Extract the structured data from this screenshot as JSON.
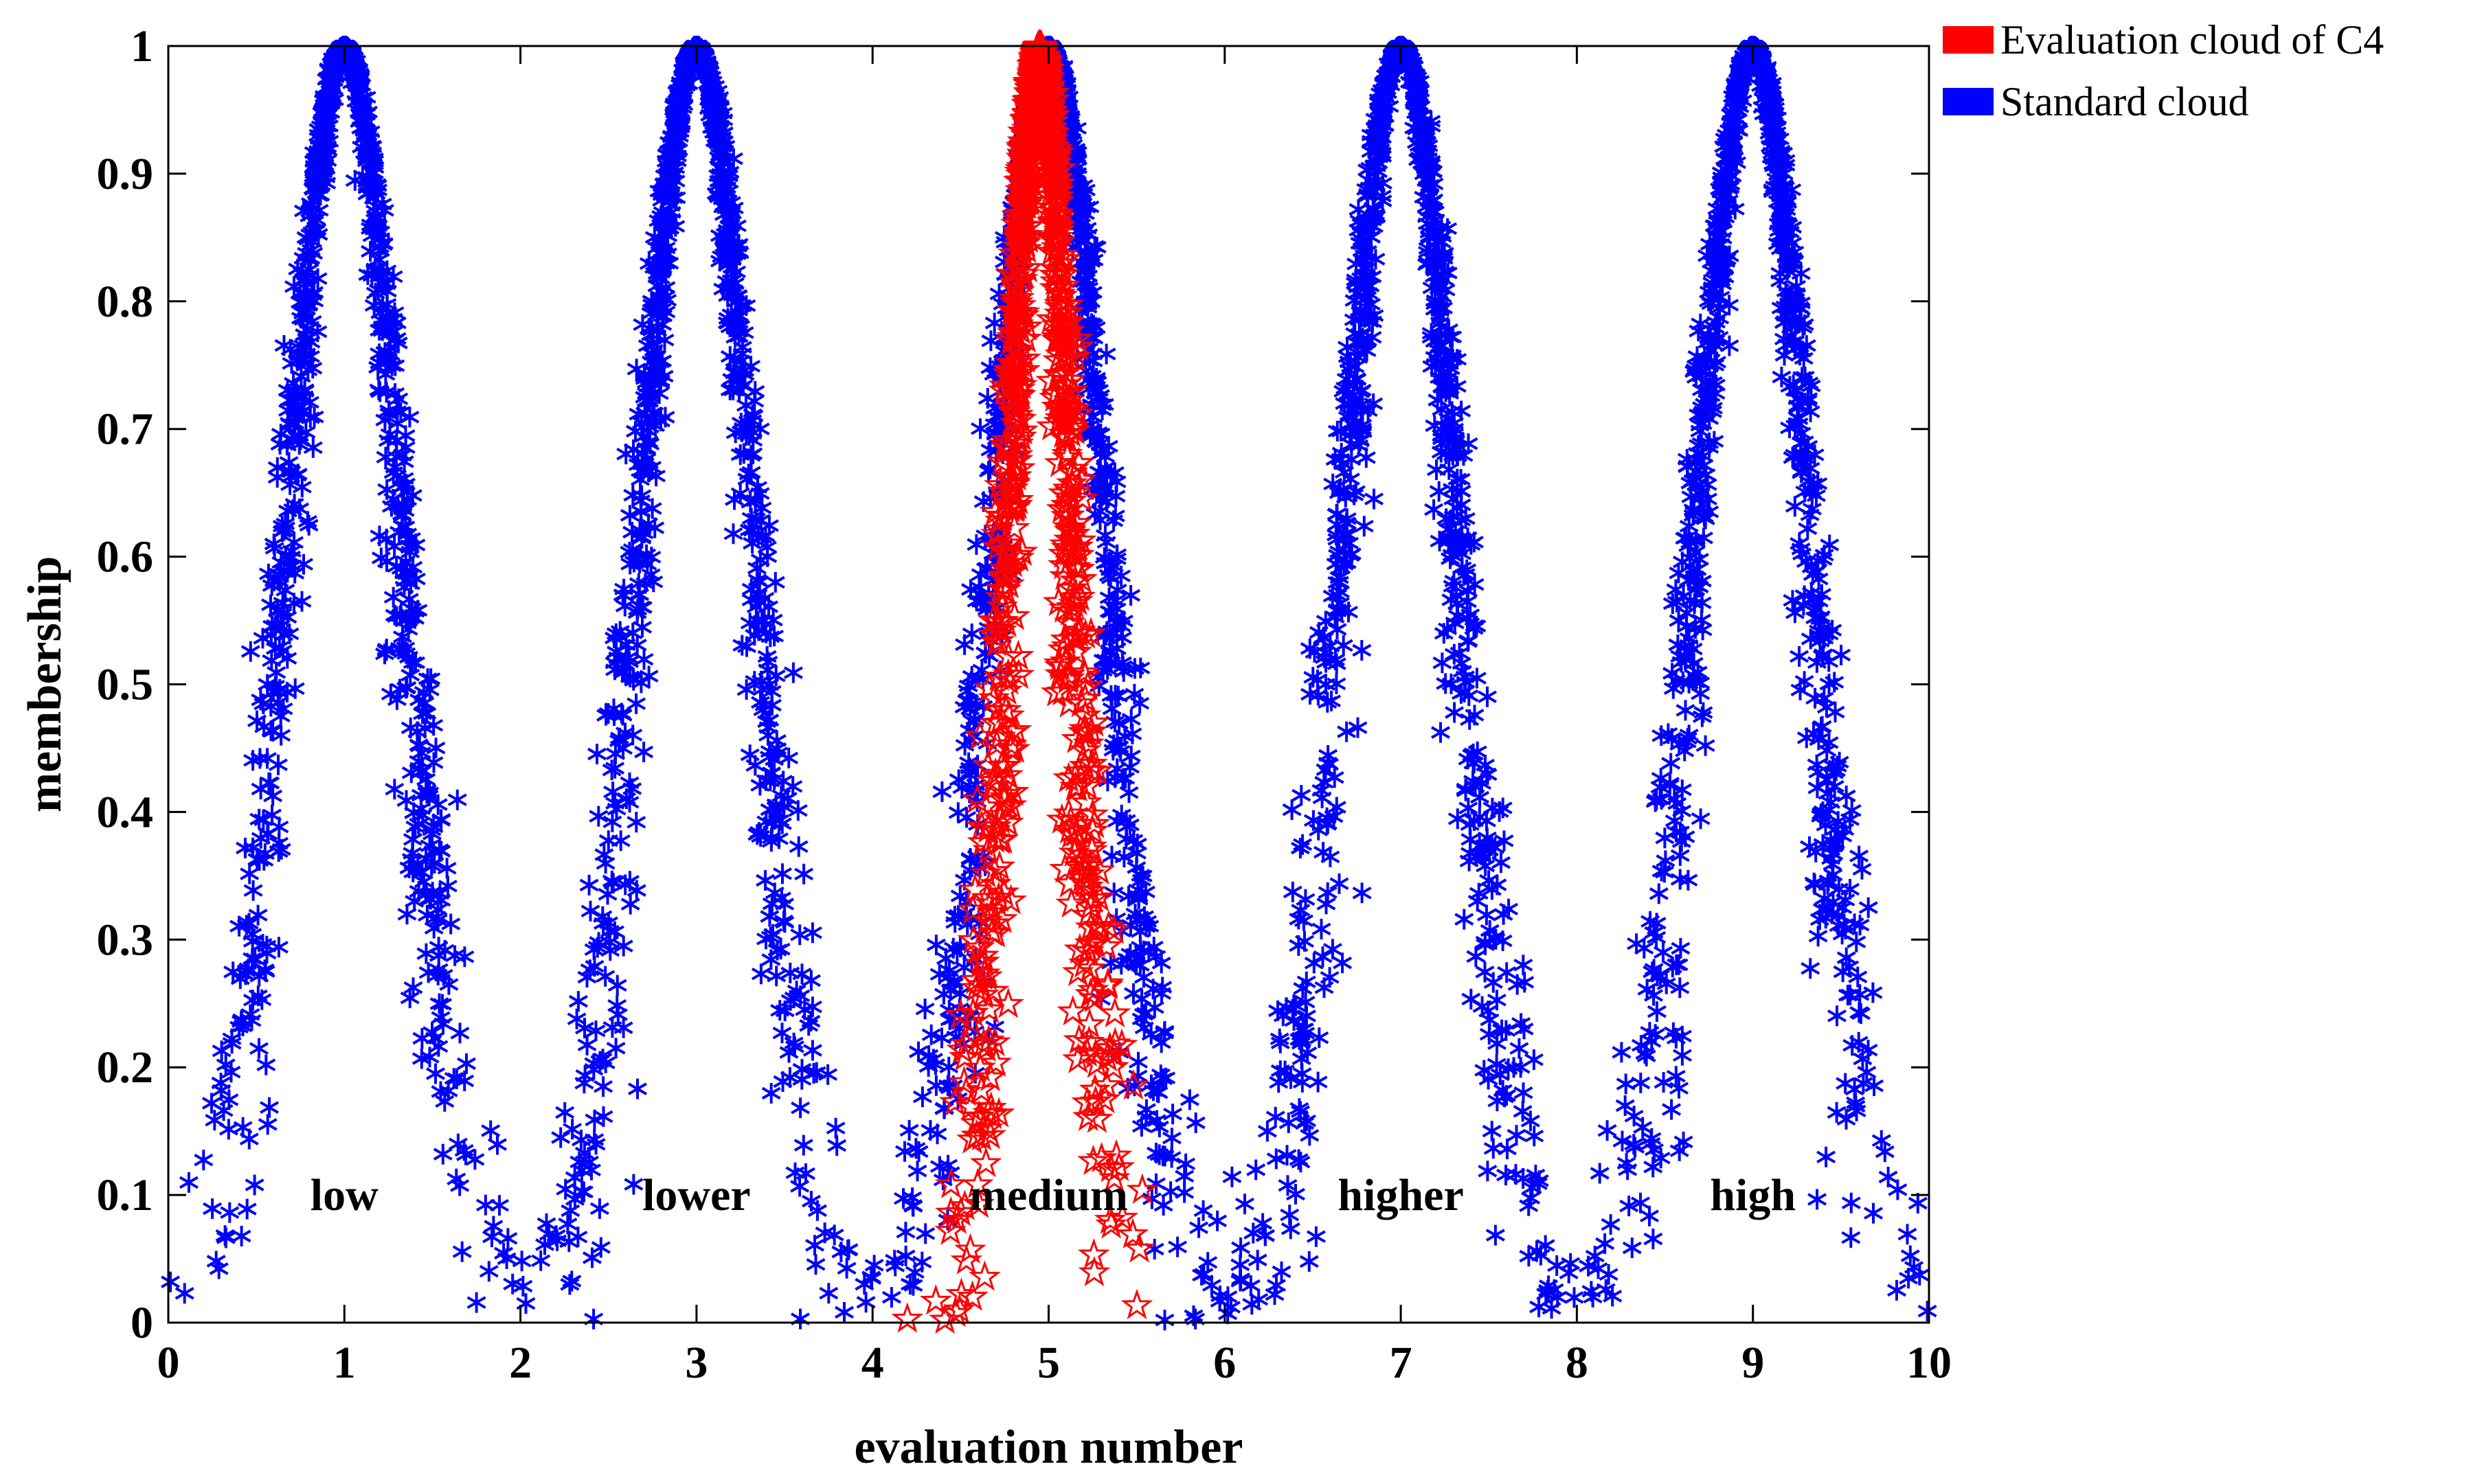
{
  "chart_data": {
    "type": "scatter",
    "xlabel": "evaluation number",
    "ylabel": "membership",
    "xlim": [
      0,
      10
    ],
    "ylim": [
      0,
      1
    ],
    "xticks": [
      0,
      1,
      2,
      3,
      4,
      5,
      6,
      7,
      8,
      9,
      10
    ],
    "xtick_labels": [
      "0",
      "1",
      "2",
      "3",
      "4",
      "5",
      "6",
      "7",
      "8",
      "9",
      "10"
    ],
    "yticks": [
      0,
      0.1,
      0.2,
      0.3,
      0.4,
      0.5,
      0.6,
      0.7,
      0.8,
      0.9,
      1
    ],
    "ytick_labels": [
      "0",
      "0.1",
      "0.2",
      "0.3",
      "0.4",
      "0.5",
      "0.6",
      "0.7",
      "0.8",
      "0.9",
      "1"
    ],
    "grid": false,
    "legend_position": "outside-top-right",
    "series": [
      {
        "name": "Evaluation cloud of C4",
        "marker": "star",
        "color": "#ff0000",
        "Ex": 4.95,
        "En": 0.18,
        "He": 0.04,
        "n_points": 1000
      },
      {
        "name": "Standard cloud",
        "marker": "asterisk",
        "color": "#0000ff",
        "clouds": [
          {
            "Ex": 1,
            "En": 0.33,
            "He": 0.05
          },
          {
            "Ex": 3,
            "En": 0.33,
            "He": 0.05
          },
          {
            "Ex": 5,
            "En": 0.33,
            "He": 0.05
          },
          {
            "Ex": 7,
            "En": 0.33,
            "He": 0.05
          },
          {
            "Ex": 9,
            "En": 0.33,
            "He": 0.05
          }
        ],
        "n_points_per_cloud": 1000
      }
    ],
    "annotations": [
      {
        "text": "low",
        "x": 1,
        "y": 0.1
      },
      {
        "text": "lower",
        "x": 3,
        "y": 0.1
      },
      {
        "text": "medium",
        "x": 5,
        "y": 0.1
      },
      {
        "text": "higher",
        "x": 7,
        "y": 0.1
      },
      {
        "text": "high",
        "x": 9,
        "y": 0.1
      }
    ]
  }
}
